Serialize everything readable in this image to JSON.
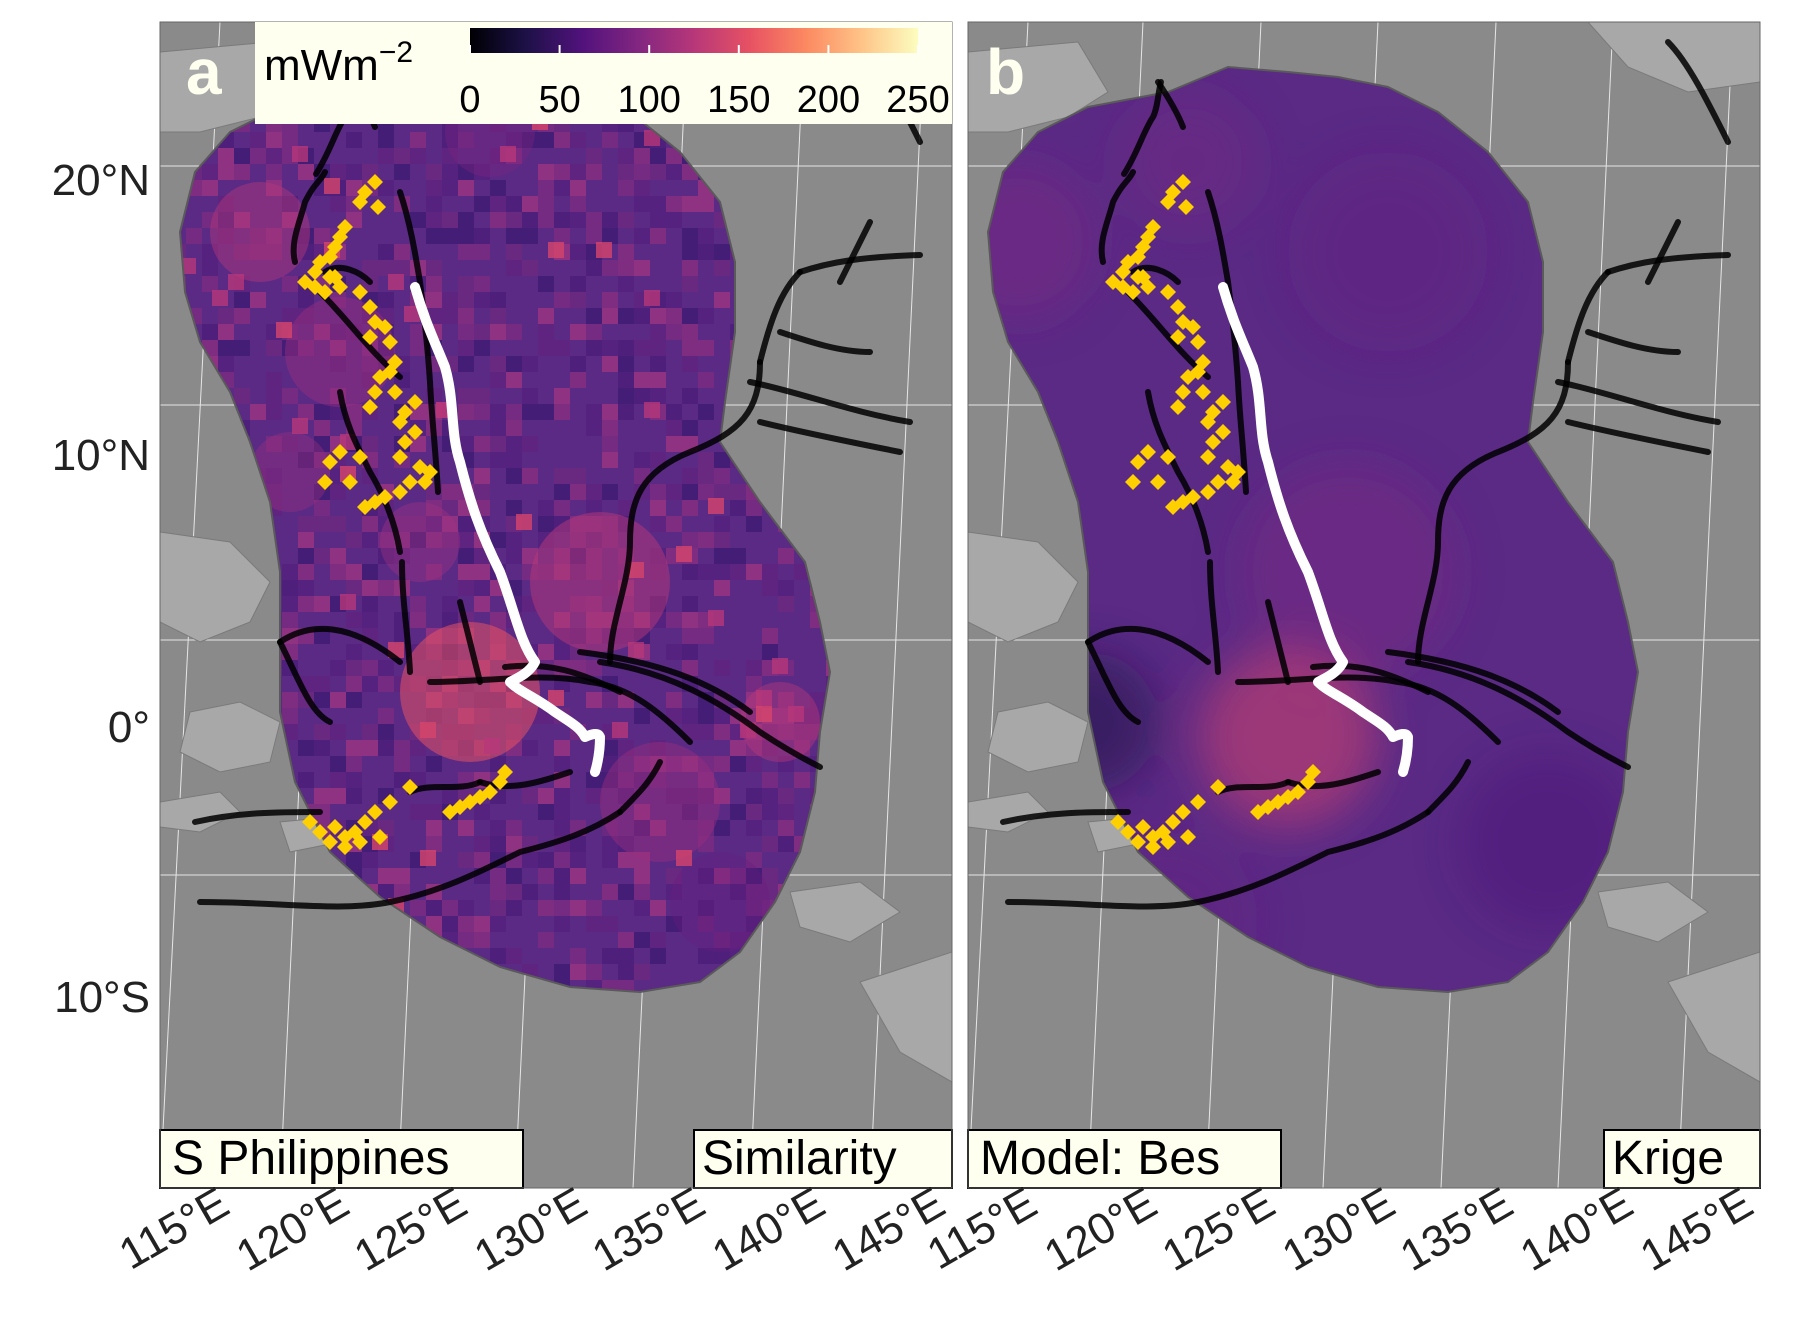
{
  "colorbar": {
    "unit_base": "mWm",
    "unit_exp": "−2",
    "ticks": [
      "0",
      "50",
      "100",
      "150",
      "200",
      "250"
    ],
    "colors": [
      "#000004",
      "#1d1147",
      "#51127c",
      "#822681",
      "#b73779",
      "#e75263",
      "#fc8961",
      "#fec488",
      "#fcfdbf"
    ]
  },
  "panels": [
    {
      "letter": "a",
      "label_left": "S Philippines",
      "label_right": "Similarity",
      "texture": "pixelated"
    },
    {
      "letter": "b",
      "label_left": "Model: Bes",
      "label_right": "Krige",
      "texture": "smooth"
    }
  ],
  "lat_labels": [
    "20°N",
    "10°N",
    "0°",
    "10°S"
  ],
  "lon_labels": [
    "115°E",
    "120°E",
    "125°E",
    "130°E",
    "135°E",
    "140°E",
    "145°E"
  ],
  "colors": {
    "land": "#a8a8a8",
    "sea": "#8a8a8a",
    "grid": "#e6e6e6",
    "base_heatflow": "#5a2a85",
    "segment_line": "#000000",
    "highlight_line": "#ffffff",
    "markers": "#ffd000",
    "label_fill": "#fffff0"
  }
}
